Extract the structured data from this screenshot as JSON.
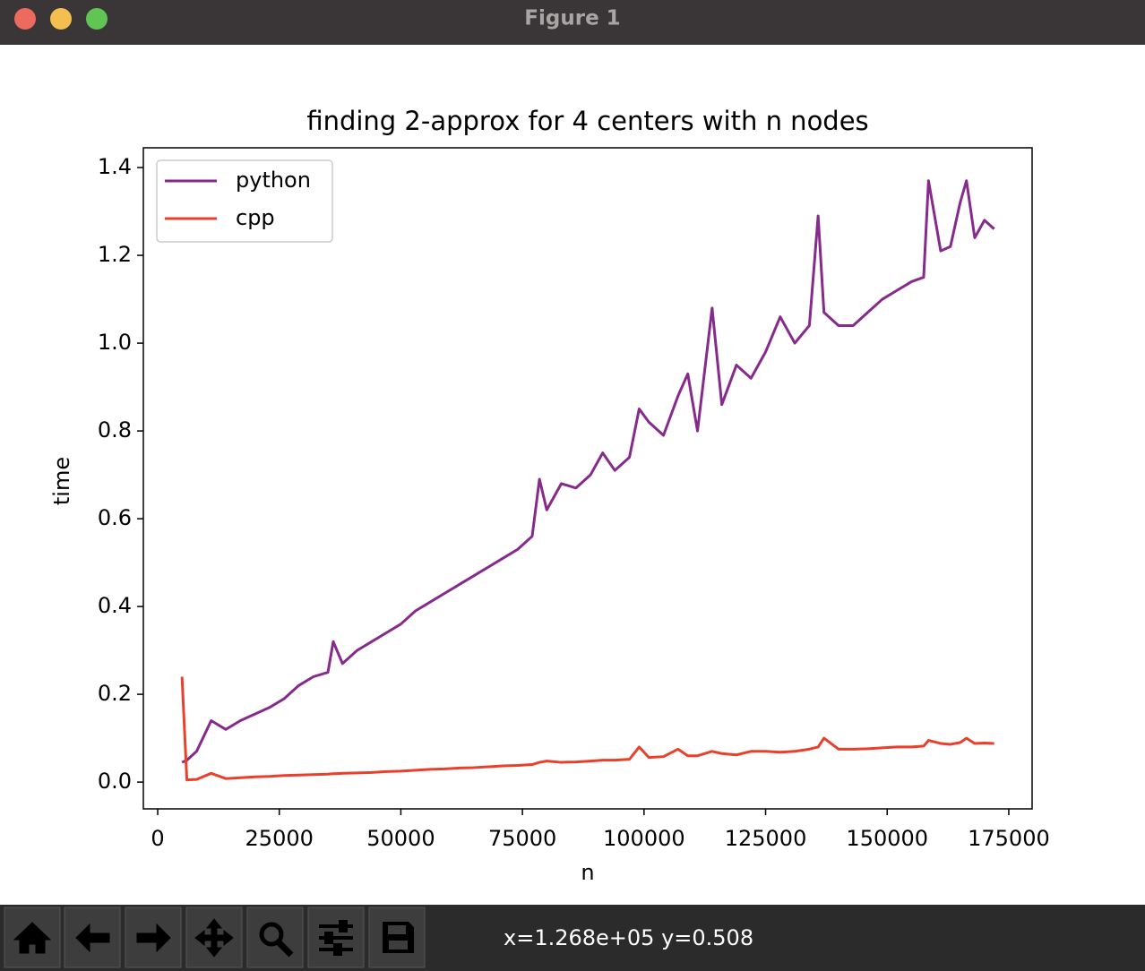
{
  "window": {
    "title": "Figure 1",
    "status": "x=1.268e+05 y=0.508"
  },
  "chart_data": {
    "type": "line",
    "title": "finding 2-approx for 4 centers with n nodes",
    "xlabel": "n",
    "ylabel": "time",
    "legend": "upper left",
    "grid": false,
    "x": [
      5000,
      6000,
      8000,
      11000,
      14000,
      17000,
      20000,
      23000,
      26000,
      29000,
      32000,
      35000,
      36100,
      38000,
      41000,
      44000,
      47000,
      50000,
      53000,
      56000,
      59000,
      62000,
      65000,
      68000,
      71000,
      74000,
      77000,
      78500,
      80000,
      83000,
      86000,
      89000,
      91500,
      94000,
      97000,
      99000,
      101000,
      104000,
      107000,
      109000,
      111000,
      114000,
      116000,
      119000,
      122000,
      125000,
      128000,
      131000,
      134000,
      135800,
      137000,
      140000,
      143000,
      146000,
      149000,
      152000,
      155000,
      157500,
      158500,
      161000,
      163000,
      165000,
      166300,
      168000,
      170000,
      172000
    ],
    "series": [
      {
        "name": "python",
        "color": "#862a8c",
        "values": [
          0.045,
          0.05,
          0.07,
          0.14,
          0.12,
          0.14,
          0.155,
          0.17,
          0.19,
          0.22,
          0.24,
          0.25,
          0.32,
          0.27,
          0.3,
          0.32,
          0.34,
          0.36,
          0.39,
          0.41,
          0.43,
          0.45,
          0.47,
          0.49,
          0.51,
          0.53,
          0.56,
          0.69,
          0.62,
          0.68,
          0.67,
          0.7,
          0.75,
          0.71,
          0.74,
          0.85,
          0.82,
          0.79,
          0.88,
          0.93,
          0.8,
          1.08,
          0.86,
          0.95,
          0.92,
          0.98,
          1.06,
          1.0,
          1.04,
          1.29,
          1.07,
          1.04,
          1.04,
          1.07,
          1.1,
          1.12,
          1.14,
          1.15,
          1.37,
          1.21,
          1.22,
          1.32,
          1.37,
          1.24,
          1.28,
          1.26
        ]
      },
      {
        "name": "cpp",
        "color": "#e8402a",
        "values": [
          0.24,
          0.005,
          0.006,
          0.02,
          0.008,
          0.01,
          0.012,
          0.013,
          0.015,
          0.016,
          0.017,
          0.018,
          0.019,
          0.02,
          0.021,
          0.022,
          0.024,
          0.025,
          0.027,
          0.029,
          0.03,
          0.032,
          0.033,
          0.035,
          0.037,
          0.038,
          0.04,
          0.045,
          0.048,
          0.045,
          0.046,
          0.048,
          0.05,
          0.05,
          0.052,
          0.08,
          0.056,
          0.058,
          0.075,
          0.06,
          0.06,
          0.07,
          0.065,
          0.062,
          0.07,
          0.07,
          0.068,
          0.07,
          0.075,
          0.08,
          0.1,
          0.075,
          0.075,
          0.076,
          0.078,
          0.08,
          0.08,
          0.082,
          0.095,
          0.088,
          0.086,
          0.09,
          0.1,
          0.088,
          0.089,
          0.088
        ]
      }
    ],
    "xlim": [
      -2950,
      179800
    ],
    "ylim": [
      -0.061,
      1.445
    ],
    "xticks": [
      0,
      25000,
      50000,
      75000,
      100000,
      125000,
      150000,
      175000
    ],
    "yticks": [
      {
        "value": 0,
        "label": "0.0"
      },
      0.2,
      0.4,
      0.6,
      0.8,
      {
        "value": 1,
        "label": "1.0"
      },
      1.2,
      1.4
    ]
  }
}
